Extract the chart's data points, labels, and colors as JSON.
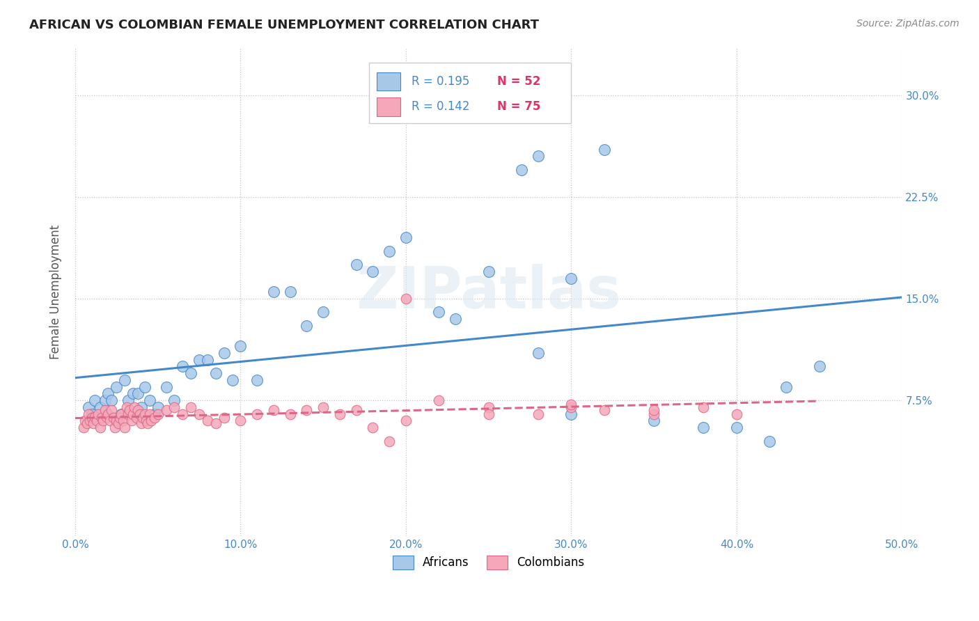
{
  "title": "AFRICAN VS COLOMBIAN FEMALE UNEMPLOYMENT CORRELATION CHART",
  "source": "Source: ZipAtlas.com",
  "ylabel": "Female Unemployment",
  "xlim": [
    0.0,
    0.5
  ],
  "ylim": [
    -0.025,
    0.335
  ],
  "xticks": [
    0.0,
    0.1,
    0.2,
    0.3,
    0.4,
    0.5
  ],
  "xtick_labels": [
    "0.0%",
    "10.0%",
    "20.0%",
    "30.0%",
    "40.0%",
    "50.0%"
  ],
  "yticks": [
    0.075,
    0.15,
    0.225,
    0.3
  ],
  "ytick_labels": [
    "7.5%",
    "15.0%",
    "22.5%",
    "30.0%"
  ],
  "african_color": "#a8c8e8",
  "colombian_color": "#f4a8b8",
  "african_line_color": "#4488cc",
  "colombian_line_color": "#dd6688",
  "legend_R_color": "#4488cc",
  "legend_N_color": "#dd3366",
  "background_color": "#ffffff",
  "watermark": "ZIPatlas",
  "african_scatter_x": [
    0.008,
    0.01,
    0.012,
    0.015,
    0.018,
    0.02,
    0.022,
    0.025,
    0.028,
    0.03,
    0.032,
    0.035,
    0.038,
    0.04,
    0.042,
    0.045,
    0.048,
    0.05,
    0.055,
    0.06,
    0.065,
    0.07,
    0.075,
    0.08,
    0.085,
    0.09,
    0.095,
    0.1,
    0.11,
    0.12,
    0.13,
    0.14,
    0.15,
    0.17,
    0.18,
    0.19,
    0.2,
    0.22,
    0.23,
    0.25,
    0.27,
    0.28,
    0.3,
    0.32,
    0.35,
    0.38,
    0.4,
    0.42,
    0.43,
    0.45,
    0.28,
    0.3
  ],
  "african_scatter_y": [
    0.07,
    0.065,
    0.075,
    0.07,
    0.075,
    0.08,
    0.075,
    0.085,
    0.065,
    0.09,
    0.075,
    0.08,
    0.08,
    0.07,
    0.085,
    0.075,
    0.065,
    0.07,
    0.085,
    0.075,
    0.1,
    0.095,
    0.105,
    0.105,
    0.095,
    0.11,
    0.09,
    0.115,
    0.09,
    0.155,
    0.155,
    0.13,
    0.14,
    0.175,
    0.17,
    0.185,
    0.195,
    0.14,
    0.135,
    0.17,
    0.245,
    0.255,
    0.165,
    0.26,
    0.06,
    0.055,
    0.055,
    0.045,
    0.085,
    0.1,
    0.11,
    0.065
  ],
  "colombian_scatter_x": [
    0.005,
    0.006,
    0.007,
    0.008,
    0.009,
    0.01,
    0.011,
    0.012,
    0.013,
    0.014,
    0.015,
    0.016,
    0.017,
    0.018,
    0.019,
    0.02,
    0.021,
    0.022,
    0.023,
    0.024,
    0.025,
    0.026,
    0.027,
    0.028,
    0.029,
    0.03,
    0.031,
    0.032,
    0.033,
    0.034,
    0.035,
    0.036,
    0.037,
    0.038,
    0.039,
    0.04,
    0.041,
    0.042,
    0.043,
    0.044,
    0.045,
    0.046,
    0.048,
    0.05,
    0.055,
    0.06,
    0.065,
    0.07,
    0.075,
    0.08,
    0.085,
    0.09,
    0.1,
    0.11,
    0.12,
    0.13,
    0.14,
    0.15,
    0.16,
    0.17,
    0.18,
    0.19,
    0.2,
    0.22,
    0.25,
    0.28,
    0.3,
    0.32,
    0.35,
    0.38,
    0.2,
    0.25,
    0.3,
    0.35,
    0.4
  ],
  "colombian_scatter_y": [
    0.055,
    0.06,
    0.058,
    0.065,
    0.06,
    0.062,
    0.058,
    0.063,
    0.06,
    0.065,
    0.055,
    0.062,
    0.06,
    0.068,
    0.063,
    0.065,
    0.06,
    0.068,
    0.062,
    0.055,
    0.06,
    0.058,
    0.062,
    0.065,
    0.06,
    0.055,
    0.07,
    0.065,
    0.068,
    0.06,
    0.065,
    0.07,
    0.062,
    0.068,
    0.065,
    0.058,
    0.062,
    0.065,
    0.06,
    0.058,
    0.065,
    0.06,
    0.062,
    0.065,
    0.068,
    0.07,
    0.065,
    0.07,
    0.065,
    0.06,
    0.058,
    0.062,
    0.06,
    0.065,
    0.068,
    0.065,
    0.068,
    0.07,
    0.065,
    0.068,
    0.055,
    0.045,
    0.06,
    0.075,
    0.07,
    0.065,
    0.07,
    0.068,
    0.065,
    0.07,
    0.15,
    0.065,
    0.072,
    0.068,
    0.065
  ]
}
